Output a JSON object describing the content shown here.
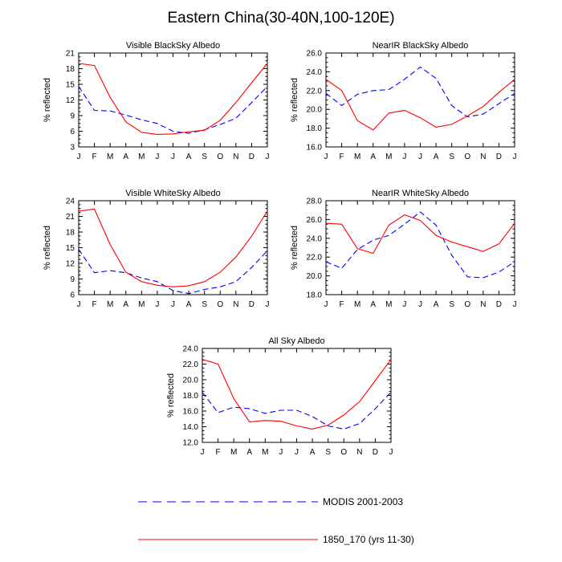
{
  "title": "Eastern China(30-40N,100-120E)",
  "colors": {
    "modis": "#0000ff",
    "model": "#ff0000",
    "axis": "#000000"
  },
  "legend": {
    "placement": "bottom-center",
    "entries": [
      {
        "label": "MODIS 2001-2003",
        "color": "#0000ff",
        "dash": "dashed"
      },
      {
        "label": "1850_170 (yrs 11-30)",
        "color": "#ff0000",
        "dash": "solid"
      }
    ]
  },
  "chart_data": [
    {
      "type": "line",
      "title": "Visible BlackSky Albedo",
      "ylabel": "% reflected",
      "categories": [
        "J",
        "F",
        "M",
        "A",
        "M",
        "J",
        "J",
        "A",
        "S",
        "O",
        "N",
        "D",
        "J"
      ],
      "ylim": [
        3,
        21
      ],
      "yticks": [
        "3",
        "6",
        "9",
        "12",
        "15",
        "18",
        "21"
      ],
      "series": [
        {
          "name": "MODIS 2001-2003",
          "values": [
            14.6,
            10.0,
            9.9,
            9.1,
            8.2,
            7.5,
            6.0,
            5.6,
            6.3,
            7.3,
            8.5,
            11.5,
            14.6
          ]
        },
        {
          "name": "1850_170 (yrs 11-30)",
          "values": [
            19.0,
            18.6,
            12.5,
            7.8,
            5.8,
            5.4,
            5.5,
            5.9,
            6.2,
            8.1,
            11.5,
            15.3,
            19.0
          ]
        }
      ]
    },
    {
      "type": "line",
      "title": "NearIR BlackSky Albedo",
      "ylabel": "% reflected",
      "categories": [
        "J",
        "F",
        "M",
        "A",
        "M",
        "J",
        "J",
        "A",
        "S",
        "O",
        "N",
        "D",
        "J"
      ],
      "ylim": [
        16,
        26
      ],
      "yticks": [
        "16.0",
        "18.0",
        "20.0",
        "22.0",
        "24.0",
        "26.0"
      ],
      "series": [
        {
          "name": "MODIS 2001-2003",
          "values": [
            21.7,
            20.4,
            21.6,
            22.0,
            22.1,
            23.2,
            24.5,
            23.3,
            20.4,
            19.2,
            19.5,
            20.6,
            21.7
          ]
        },
        {
          "name": "1850_170 (yrs 11-30)",
          "values": [
            23.2,
            22.0,
            18.8,
            17.8,
            19.6,
            19.9,
            19.1,
            18.1,
            18.4,
            19.3,
            20.3,
            21.8,
            23.2
          ]
        }
      ]
    },
    {
      "type": "line",
      "title": "Visible WhiteSky Albedo",
      "ylabel": "% reflected",
      "categories": [
        "J",
        "F",
        "M",
        "A",
        "M",
        "J",
        "J",
        "A",
        "S",
        "O",
        "N",
        "D",
        "J"
      ],
      "ylim": [
        6,
        24
      ],
      "yticks": [
        "6",
        "9",
        "12",
        "15",
        "18",
        "21",
        "24"
      ],
      "series": [
        {
          "name": "MODIS 2001-2003",
          "values": [
            14.7,
            10.2,
            10.6,
            10.2,
            9.2,
            8.5,
            6.8,
            6.2,
            7.0,
            7.5,
            8.5,
            11.2,
            14.4
          ]
        },
        {
          "name": "1850_170 (yrs 11-30)",
          "values": [
            22.0,
            22.4,
            15.6,
            10.3,
            8.5,
            7.8,
            7.5,
            7.7,
            8.5,
            10.3,
            13.2,
            17.2,
            22.0
          ]
        }
      ]
    },
    {
      "type": "line",
      "title": "NearIR WhiteSky Albedo",
      "ylabel": "% reflected",
      "categories": [
        "J",
        "F",
        "M",
        "A",
        "M",
        "J",
        "J",
        "A",
        "S",
        "O",
        "N",
        "D",
        "J"
      ],
      "ylim": [
        18,
        28
      ],
      "yticks": [
        "18.0",
        "20.0",
        "22.0",
        "24.0",
        "26.0",
        "28.0"
      ],
      "series": [
        {
          "name": "MODIS 2001-2003",
          "values": [
            21.5,
            20.8,
            22.8,
            23.8,
            24.3,
            25.5,
            26.8,
            25.4,
            22.2,
            19.9,
            19.8,
            20.4,
            21.5
          ]
        },
        {
          "name": "1850_170 (yrs 11-30)",
          "values": [
            25.6,
            25.5,
            22.9,
            22.4,
            25.4,
            26.5,
            25.9,
            24.3,
            23.6,
            23.1,
            22.6,
            23.4,
            25.6
          ]
        }
      ]
    },
    {
      "type": "line",
      "title": "All Sky Albedo",
      "ylabel": "% reflected",
      "categories": [
        "J",
        "F",
        "M",
        "A",
        "M",
        "J",
        "J",
        "A",
        "S",
        "O",
        "N",
        "D",
        "J"
      ],
      "ylim": [
        12,
        24
      ],
      "yticks": [
        "12.0",
        "14.0",
        "16.0",
        "18.0",
        "20.0",
        "22.0",
        "24.0"
      ],
      "series": [
        {
          "name": "MODIS 2001-2003",
          "values": [
            18.4,
            15.8,
            16.5,
            16.3,
            15.7,
            16.1,
            16.1,
            15.3,
            14.1,
            13.7,
            14.4,
            16.3,
            18.4
          ]
        },
        {
          "name": "1850_170 (yrs 11-30)",
          "values": [
            22.6,
            22.0,
            17.6,
            14.6,
            14.8,
            14.7,
            14.1,
            13.7,
            14.2,
            15.5,
            17.2,
            19.9,
            22.6
          ]
        }
      ]
    }
  ]
}
